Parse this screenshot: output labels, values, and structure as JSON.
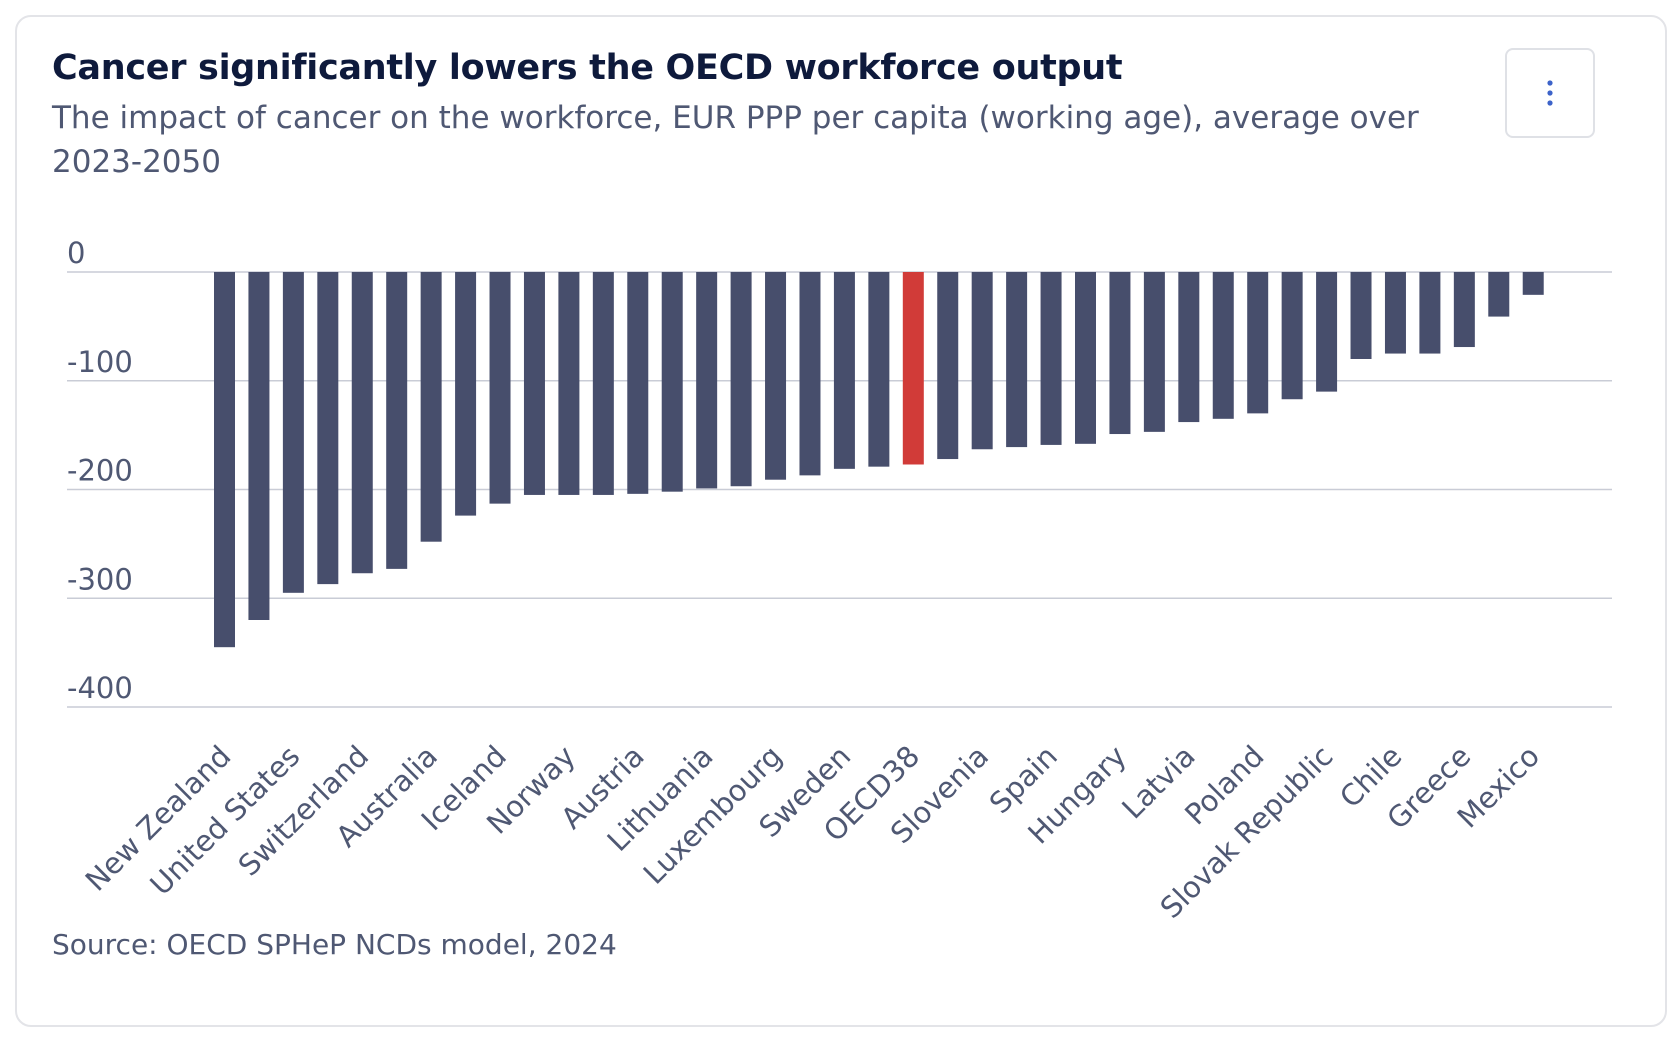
{
  "header": {
    "title": "Cancer significantly lowers the OECD workforce output",
    "subtitle": "The impact of cancer on the workforce, EUR PPP per capita (working age), average over 2023-2050"
  },
  "menu": {
    "icon": "vertical-ellipsis-icon"
  },
  "source": "Source: OECD SPHeP NCDs model, 2024",
  "colors": {
    "bar": "#474e6c",
    "highlight": "#d13b38",
    "grid": "#c9ccd6",
    "axis_text": "#4f5873"
  },
  "chart_data": {
    "type": "bar",
    "title": "Cancer significantly lowers the OECD workforce output",
    "subtitle": "The impact of cancer on the workforce, EUR PPP per capita (working age), average over 2023-2050",
    "xlabel": "",
    "ylabel": "",
    "ylim": [
      -400,
      0
    ],
    "yticks": [
      0,
      -100,
      -200,
      -300,
      -400
    ],
    "yticks_labels": [
      "0",
      "-100",
      "-200",
      "-300",
      "-400"
    ],
    "grid": true,
    "highlight": "OECD38",
    "categories": [
      "New Zealand",
      "",
      "United States",
      "",
      "Switzerland",
      "",
      "Australia",
      "",
      "Iceland",
      "",
      "Norway",
      "",
      "Austria",
      "",
      "Lithuania",
      "",
      "Luxembourg",
      "",
      "Sweden",
      "",
      "OECD38",
      "",
      "Slovenia",
      "",
      "Spain",
      "",
      "Hungary",
      "",
      "Latvia",
      "",
      "Poland",
      "",
      "Slovak Republic",
      "",
      "Chile",
      "",
      "Greece",
      "",
      "Mexico",
      ""
    ],
    "values": [
      -345,
      -320,
      -295,
      -287,
      -277,
      -273,
      -248,
      -224,
      -213,
      -205,
      -205,
      -205,
      -204,
      -202,
      -199,
      -197,
      -191,
      -187,
      -181,
      -179,
      -177,
      -172,
      -163,
      -161,
      -159,
      -158,
      -149,
      -147,
      -138,
      -135,
      -130,
      -117,
      -110,
      -80,
      -75,
      -75,
      -69,
      -41,
      -21,
      0
    ]
  }
}
